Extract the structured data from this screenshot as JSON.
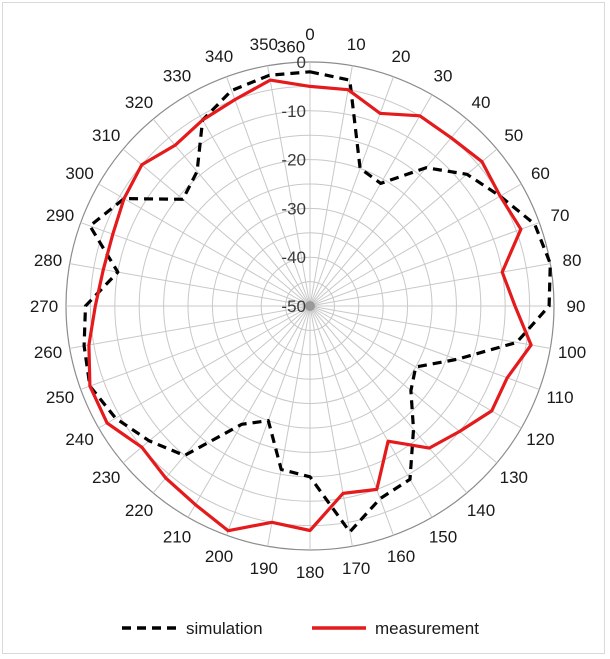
{
  "chart_data": {
    "type": "polar",
    "title": "",
    "angle_ticks": [
      "0",
      "10",
      "20",
      "30",
      "40",
      "50",
      "60",
      "70",
      "80",
      "90",
      "100",
      "110",
      "120",
      "130",
      "140",
      "150",
      "160",
      "170",
      "180",
      "190",
      "200",
      "210",
      "220",
      "230",
      "240",
      "250",
      "260",
      "270",
      "280",
      "290",
      "300",
      "310",
      "320",
      "330",
      "340",
      "350",
      "360"
    ],
    "radial_range": [
      -50,
      0
    ],
    "radial_ticks": [
      "0",
      "-10",
      "-20",
      "-30",
      "-40",
      "-50"
    ],
    "grid": true,
    "legend_position": "bottom",
    "series": [
      {
        "name": "simulation",
        "color": "#000000",
        "line_style": "dashed",
        "angles": [
          0,
          10,
          20,
          30,
          40,
          50,
          60,
          70,
          80,
          90,
          100,
          110,
          120,
          130,
          140,
          150,
          160,
          170,
          180,
          190,
          200,
          210,
          220,
          230,
          240,
          250,
          260,
          270,
          280,
          290,
          300,
          310,
          320,
          330,
          340,
          350
        ],
        "values": [
          -2,
          -3,
          -20,
          -21,
          -13,
          -8,
          -5,
          -1,
          0,
          -1,
          -7,
          -18,
          -25,
          -23,
          -17,
          -9,
          -8,
          -3,
          -15,
          -16,
          -25,
          -22,
          -10,
          -7,
          -4,
          -2,
          -3,
          -4,
          -10,
          -2,
          -6,
          -16,
          -14,
          -6,
          -3,
          -2
        ]
      },
      {
        "name": "measurement",
        "color": "#e41a1c",
        "line_style": "solid",
        "angles": [
          0,
          10,
          20,
          30,
          40,
          50,
          60,
          70,
          80,
          90,
          100,
          110,
          120,
          130,
          140,
          150,
          160,
          170,
          180,
          190,
          200,
          210,
          220,
          230,
          240,
          250,
          260,
          270,
          280,
          290,
          300,
          310,
          320,
          330,
          340,
          350
        ],
        "values": [
          -5,
          -5,
          -8,
          -5,
          -5,
          -4,
          -5,
          -4,
          -10,
          -8,
          -4,
          -7,
          -7,
          -10,
          -12,
          -18,
          -10,
          -11,
          -4,
          -5,
          -1,
          -3,
          -4,
          -5,
          -2,
          -2,
          -4,
          -6,
          -7,
          -7,
          -6,
          -5,
          -7,
          -6,
          -5,
          -3
        ]
      }
    ]
  },
  "legend": {
    "simulation_label": "simulation",
    "measurement_label": "measurement"
  }
}
